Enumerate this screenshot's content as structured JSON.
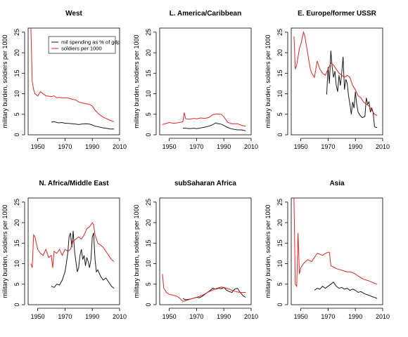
{
  "figure": {
    "ylabel": "military burden, soldiers per 1000",
    "colors": {
      "mil_spending": "#1a1a1a",
      "soldiers": "#ee2222",
      "axis": "#000000"
    },
    "legend": {
      "panel": "West",
      "placement": "top-right",
      "entries": [
        "mil spending as % of gdp",
        "soldiers per 1000"
      ]
    }
  },
  "chart_data": [
    {
      "type": "line",
      "title": "West",
      "ylabel": "military burden, soldiers per 1000",
      "xlim": [
        1943,
        2010
      ],
      "ylim": [
        0,
        26
      ],
      "xticks": [
        1950,
        1970,
        1990,
        2010
      ],
      "yticks": [
        0,
        5,
        10,
        15,
        20,
        25
      ],
      "series": [
        {
          "name": "mil spending as % of gdp",
          "x": [
            1960,
            1962,
            1965,
            1968,
            1970,
            1972,
            1975,
            1978,
            1980,
            1982,
            1985,
            1988,
            1990,
            1992,
            1995,
            1998,
            2000,
            2003,
            2006
          ],
          "y": [
            3.1,
            3.2,
            2.9,
            3.0,
            2.8,
            2.8,
            2.7,
            2.6,
            2.5,
            2.6,
            2.7,
            2.6,
            2.4,
            2.1,
            1.9,
            1.7,
            1.6,
            1.4,
            1.4
          ]
        },
        {
          "name": "soldiers per 1000",
          "x": [
            1945,
            1946,
            1947,
            1948,
            1950,
            1952,
            1954,
            1956,
            1958,
            1960,
            1962,
            1964,
            1966,
            1968,
            1970,
            1972,
            1974,
            1976,
            1978,
            1980,
            1982,
            1985,
            1988,
            1990,
            1992,
            1995,
            1998,
            2000,
            2003,
            2006
          ],
          "y": [
            26,
            13,
            11,
            10,
            9.5,
            10.5,
            10.0,
            9.5,
            9.4,
            9.3,
            9.5,
            9.0,
            9.1,
            9.0,
            9.0,
            9.0,
            8.8,
            8.6,
            8.5,
            8.0,
            7.8,
            7.6,
            7.4,
            7.0,
            6.0,
            5.0,
            4.3,
            4.0,
            3.5,
            3.2
          ]
        }
      ]
    },
    {
      "type": "line",
      "title": "L. America/Caribbean",
      "ylabel": "military burden, soldiers per 1000",
      "xlim": [
        1943,
        2010
      ],
      "ylim": [
        0,
        26
      ],
      "xticks": [
        1950,
        1970,
        1990,
        2010
      ],
      "yticks": [
        0,
        5,
        10,
        15,
        20,
        25
      ],
      "series": [
        {
          "name": "mil spending as % of gdp",
          "x": [
            1960,
            1962,
            1965,
            1968,
            1970,
            1972,
            1975,
            1978,
            1980,
            1982,
            1984,
            1986,
            1988,
            1990,
            1992,
            1995,
            1998,
            2000,
            2003,
            2006
          ],
          "y": [
            1.6,
            1.6,
            1.5,
            1.6,
            1.5,
            1.6,
            1.8,
            2.0,
            2.2,
            2.5,
            2.9,
            2.7,
            2.6,
            2.3,
            1.9,
            1.5,
            1.3,
            1.2,
            1.2,
            1.0
          ]
        },
        {
          "name": "soldiers per 1000",
          "x": [
            1945,
            1948,
            1950,
            1953,
            1956,
            1959,
            1960,
            1961,
            1962,
            1965,
            1968,
            1970,
            1973,
            1976,
            1979,
            1982,
            1985,
            1988,
            1990,
            1993,
            1996,
            2000,
            2003,
            2006
          ],
          "y": [
            2.5,
            2.8,
            3.0,
            2.8,
            2.9,
            3.1,
            3.2,
            5.4,
            3.9,
            3.8,
            4.0,
            3.9,
            4.1,
            4.0,
            4.2,
            4.9,
            5.1,
            5.0,
            4.4,
            3.0,
            2.7,
            2.7,
            2.3,
            2.1
          ]
        }
      ]
    },
    {
      "type": "line",
      "title": "E. Europe/former USSR",
      "ylabel": "military burden, soldiers per 1000",
      "xlim": [
        1943,
        2010
      ],
      "ylim": [
        0,
        26
      ],
      "xticks": [
        1950,
        1970,
        1990,
        2010
      ],
      "yticks": [
        0,
        5,
        10,
        15,
        20,
        25
      ],
      "series": [
        {
          "name": "mil spending as % of gdp",
          "x": [
            1969,
            1970,
            1971,
            1972,
            1973,
            1974,
            1975,
            1976,
            1977,
            1978,
            1979,
            1980,
            1981,
            1982,
            1983,
            1984,
            1985,
            1986,
            1987,
            1988,
            1989,
            1990,
            1991,
            1992,
            1993,
            1994,
            1995,
            1996,
            1997,
            1998,
            1999,
            2000,
            2001,
            2002,
            2003,
            2004,
            2005,
            2006
          ],
          "y": [
            9.8,
            16.5,
            12.5,
            20.5,
            16.5,
            14.0,
            15.5,
            12.0,
            10.5,
            14.5,
            12.0,
            15.0,
            19.0,
            11.0,
            13.5,
            12.5,
            9.5,
            7.5,
            5.0,
            8.0,
            6.5,
            10.5,
            7.5,
            5.5,
            5.0,
            4.5,
            4.2,
            4.3,
            4.5,
            9.0,
            7.5,
            8.0,
            5.5,
            6.5,
            5.5,
            2.0,
            1.8,
            1.8
          ]
        },
        {
          "name": "soldiers per 1000",
          "x": [
            1945,
            1946,
            1947,
            1948,
            1949,
            1950,
            1951,
            1952,
            1953,
            1954,
            1955,
            1956,
            1957,
            1958,
            1959,
            1960,
            1962,
            1964,
            1966,
            1968,
            1970,
            1972,
            1974,
            1976,
            1978,
            1980,
            1982,
            1984,
            1986,
            1988,
            1990,
            1992,
            1994,
            1996,
            1998,
            2000,
            2002,
            2004,
            2006
          ],
          "y": [
            24.0,
            16.0,
            17.0,
            19.0,
            21.0,
            22.0,
            23.5,
            25.0,
            24.0,
            22.0,
            20.0,
            18.0,
            16.0,
            15.0,
            14.5,
            14.0,
            18.0,
            16.0,
            15.0,
            14.5,
            16.0,
            17.5,
            17.0,
            16.0,
            15.0,
            14.5,
            14.0,
            14.5,
            14.0,
            12.0,
            11.0,
            9.5,
            9.0,
            8.0,
            7.5,
            7.0,
            6.0,
            5.0,
            4.7
          ]
        }
      ]
    },
    {
      "type": "line",
      "title": "N. Africa/Middle East",
      "ylabel": "military burden, soldiers per 1000",
      "xlim": [
        1943,
        2010
      ],
      "ylim": [
        0,
        26
      ],
      "xticks": [
        1950,
        1970,
        1990,
        2010
      ],
      "yticks": [
        0,
        5,
        10,
        15,
        20,
        25
      ],
      "series": [
        {
          "name": "mil spending as % of gdp",
          "x": [
            1960,
            1962,
            1964,
            1966,
            1968,
            1970,
            1971,
            1972,
            1973,
            1974,
            1975,
            1976,
            1977,
            1978,
            1979,
            1980,
            1981,
            1982,
            1983,
            1984,
            1985,
            1986,
            1987,
            1988,
            1989,
            1990,
            1991,
            1992,
            1993,
            1994,
            1996,
            1998,
            2000,
            2002,
            2004,
            2006
          ],
          "y": [
            4.5,
            4.2,
            5.0,
            4.8,
            6.0,
            8.0,
            10.0,
            12.5,
            16.5,
            17.5,
            14.0,
            18.0,
            13.0,
            10.5,
            8.0,
            9.0,
            12.0,
            13.5,
            11.0,
            12.0,
            9.5,
            11.5,
            10.5,
            9.0,
            11.0,
            16.5,
            17.5,
            11.0,
            8.0,
            8.5,
            7.0,
            6.0,
            6.5,
            5.5,
            4.5,
            4.0
          ]
        },
        {
          "name": "soldiers per 1000",
          "x": [
            1945,
            1946,
            1947,
            1948,
            1950,
            1952,
            1954,
            1956,
            1958,
            1960,
            1961,
            1962,
            1964,
            1966,
            1968,
            1970,
            1972,
            1974,
            1976,
            1978,
            1980,
            1982,
            1984,
            1986,
            1988,
            1990,
            1991,
            1992,
            1994,
            1996,
            1998,
            2000,
            2002,
            2004,
            2006
          ],
          "y": [
            10.0,
            9.0,
            17.0,
            16.5,
            13.5,
            12.5,
            12.0,
            13.5,
            11.5,
            12.0,
            9.0,
            13.0,
            12.5,
            13.5,
            12.0,
            13.5,
            13.0,
            13.5,
            15.5,
            16.0,
            16.5,
            16.0,
            17.0,
            18.5,
            19.0,
            20.0,
            19.5,
            17.0,
            15.0,
            14.5,
            14.0,
            13.0,
            12.0,
            11.0,
            10.5
          ]
        }
      ]
    },
    {
      "type": "line",
      "title": "subSaharan Africa",
      "ylabel": "military burden, soldiers per 1000",
      "xlim": [
        1943,
        2010
      ],
      "ylim": [
        0,
        26
      ],
      "xticks": [
        1950,
        1970,
        1990,
        2010
      ],
      "yticks": [
        0,
        5,
        10,
        15,
        20,
        25
      ],
      "series": [
        {
          "name": "mil spending as % of gdp",
          "x": [
            1960,
            1962,
            1964,
            1966,
            1968,
            1970,
            1972,
            1974,
            1976,
            1978,
            1980,
            1982,
            1984,
            1986,
            1988,
            1990,
            1992,
            1994,
            1996,
            1998,
            2000,
            2002,
            2004,
            2006
          ],
          "y": [
            1.5,
            1.2,
            1.3,
            1.4,
            1.6,
            1.8,
            1.7,
            2.0,
            2.5,
            3.0,
            3.5,
            4.0,
            3.8,
            4.0,
            3.9,
            4.2,
            3.5,
            3.2,
            3.0,
            3.8,
            4.0,
            3.0,
            2.2,
            1.8
          ]
        },
        {
          "name": "soldiers per 1000",
          "x": [
            1945,
            1946,
            1947,
            1948,
            1950,
            1952,
            1954,
            1956,
            1958,
            1960,
            1962,
            1964,
            1966,
            1968,
            1970,
            1972,
            1974,
            1976,
            1978,
            1980,
            1982,
            1984,
            1986,
            1988,
            1990,
            1992,
            1994,
            1996,
            1998,
            2000,
            2002,
            2004,
            2006
          ],
          "y": [
            7.5,
            4.0,
            3.5,
            3.0,
            2.5,
            2.4,
            2.2,
            2.0,
            1.5,
            0.8,
            1.0,
            1.2,
            1.4,
            1.6,
            1.8,
            2.0,
            2.3,
            2.6,
            3.0,
            3.3,
            3.6,
            3.9,
            4.1,
            4.3,
            4.2,
            4.0,
            3.8,
            3.5,
            3.3,
            3.1,
            3.0,
            3.0,
            3.0
          ]
        }
      ]
    },
    {
      "type": "line",
      "title": "Asia",
      "ylabel": "military burden, soldiers per 1000",
      "xlim": [
        1943,
        2010
      ],
      "ylim": [
        0,
        26
      ],
      "xticks": [
        1950,
        1970,
        1990,
        2010
      ],
      "yticks": [
        0,
        5,
        10,
        15,
        20,
        25
      ],
      "series": [
        {
          "name": "mil spending as % of gdp",
          "x": [
            1960,
            1962,
            1964,
            1966,
            1968,
            1970,
            1972,
            1974,
            1976,
            1978,
            1980,
            1982,
            1984,
            1986,
            1988,
            1990,
            1992,
            1994,
            1996,
            1998,
            2000,
            2002,
            2004,
            2006
          ],
          "y": [
            3.5,
            4.0,
            3.8,
            4.5,
            4.0,
            4.5,
            5.0,
            5.5,
            4.5,
            4.0,
            4.2,
            3.8,
            4.0,
            3.5,
            3.8,
            3.5,
            3.0,
            3.2,
            2.8,
            2.5,
            2.3,
            2.0,
            1.8,
            1.5
          ]
        },
        {
          "name": "soldiers per 1000",
          "x": [
            1945,
            1946,
            1947,
            1948,
            1949,
            1950,
            1952,
            1955,
            1958,
            1960,
            1962,
            1964,
            1966,
            1968,
            1970,
            1971,
            1972,
            1974,
            1976,
            1978,
            1980,
            1982,
            1984,
            1986,
            1988,
            1990,
            1992,
            1994,
            1996,
            1998,
            2000,
            2002,
            2004,
            2006
          ],
          "y": [
            26,
            5.0,
            4.5,
            17.5,
            7.5,
            9.0,
            10.0,
            11.0,
            10.5,
            11.5,
            12.5,
            12.3,
            12.0,
            12.5,
            12.8,
            12.8,
            9.5,
            9.2,
            8.8,
            8.6,
            8.4,
            8.2,
            8.0,
            8.0,
            7.8,
            7.5,
            7.0,
            6.6,
            6.2,
            6.0,
            5.8,
            5.5,
            5.2,
            5.0
          ]
        }
      ]
    }
  ]
}
